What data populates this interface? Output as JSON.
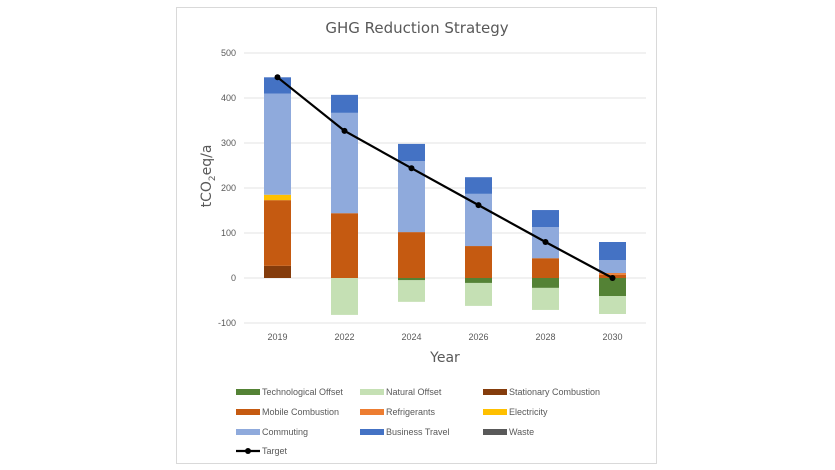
{
  "chart_data": {
    "type": "bar",
    "stacked": true,
    "title": "GHG Reduction Strategy",
    "xlabel": "Year",
    "ylabel": "tCO2eq/a",
    "ylabel_main": "tCO",
    "ylabel_sub": "2",
    "ylabel_rest": "eq/a",
    "ylim": [
      -100,
      500
    ],
    "yticks": [
      -100,
      0,
      100,
      200,
      300,
      400,
      500
    ],
    "ytick_labels": [
      "-100",
      "0",
      "100",
      "200",
      "300",
      "400",
      "500"
    ],
    "grid": true,
    "legend_position": "bottom",
    "categories": [
      "2019",
      "2022",
      "2024",
      "2026",
      "2028",
      "2030"
    ],
    "series": [
      {
        "name": "Technological Offset",
        "color": "#548235",
        "values": [
          0,
          0,
          -5,
          -11,
          -22,
          -40
        ]
      },
      {
        "name": "Natural Offset",
        "color": "#c5e0b4",
        "values": [
          0,
          -82,
          -48,
          -51,
          -49,
          -40
        ]
      },
      {
        "name": "Stationary Combustion",
        "color": "#843c0c",
        "values": [
          27,
          0,
          0,
          0,
          0,
          0
        ]
      },
      {
        "name": "Mobile Combustion",
        "color": "#c55a11",
        "values": [
          146,
          144,
          102,
          71,
          44,
          7
        ]
      },
      {
        "name": "Refrigerants",
        "color": "#ed7d31",
        "values": [
          0,
          0,
          0,
          0,
          0,
          4
        ]
      },
      {
        "name": "Electricity",
        "color": "#ffc000",
        "values": [
          12,
          0,
          0,
          0,
          0,
          0
        ]
      },
      {
        "name": "Commuting",
        "color": "#8faadc",
        "values": [
          225,
          223,
          158,
          116,
          69,
          29
        ]
      },
      {
        "name": "Business Travel",
        "color": "#4472c4",
        "values": [
          36,
          40,
          38,
          37,
          38,
          40
        ]
      },
      {
        "name": "Waste",
        "color": "#595959",
        "values": [
          0,
          0,
          0,
          0,
          0,
          0
        ]
      }
    ],
    "line_series": {
      "name": "Target",
      "color": "#000000",
      "values": [
        446,
        327,
        244,
        162,
        80,
        0
      ]
    }
  }
}
